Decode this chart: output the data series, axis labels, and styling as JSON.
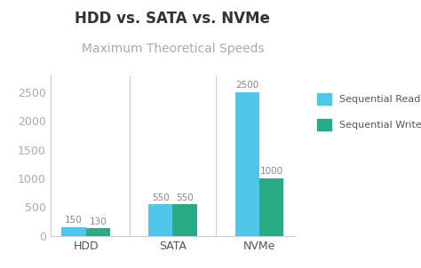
{
  "title": "HDD vs. SATA vs. NVMe",
  "subtitle": "Maximum Theoretical Speeds",
  "categories": [
    "HDD",
    "SATA",
    "NVMe"
  ],
  "sequential_read": [
    150,
    550,
    2500
  ],
  "sequential_write": [
    130,
    550,
    1000
  ],
  "color_read": "#4DC8E8",
  "color_write": "#2BAA88",
  "ylim": [
    0,
    2800
  ],
  "yticks": [
    0,
    500,
    1000,
    1500,
    2000,
    2500
  ],
  "bar_width": 0.28,
  "title_fontsize": 12,
  "subtitle_fontsize": 10,
  "subtitle_color": "#aaaaaa",
  "axis_color": "#cccccc",
  "tick_label_fontsize": 9,
  "value_label_fontsize": 7.5,
  "value_label_color": "#888888",
  "legend_read": "Sequential Read",
  "legend_write": "Sequential Write",
  "background_color": "#ffffff",
  "title_color": "#333333",
  "xticklabel_color": "#555555",
  "ytick_color": "#aaaaaa"
}
